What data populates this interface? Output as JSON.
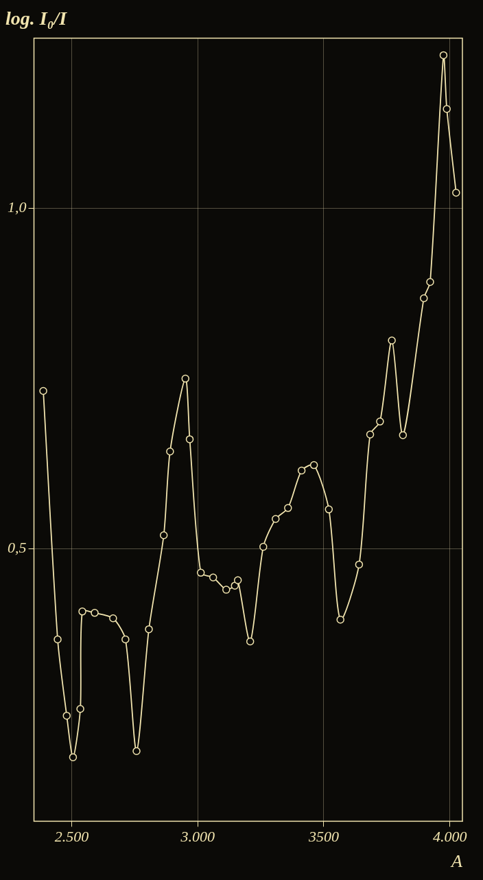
{
  "chart_data": {
    "type": "line",
    "title": "log. I₀/I",
    "x_label": "A",
    "x": [
      2387,
      2444,
      2480,
      2505,
      2534,
      2542,
      2591,
      2664,
      2713,
      2757,
      2806,
      2865,
      2890,
      2951,
      2968,
      3012,
      3061,
      3113,
      3147,
      3159,
      3208,
      3260,
      3309,
      3358,
      3412,
      3461,
      3520,
      3566,
      3640,
      3684,
      3723,
      3770,
      3814,
      3897,
      3922,
      3975,
      3988,
      4025
    ],
    "values": [
      0.732,
      0.367,
      0.255,
      0.194,
      0.265,
      0.408,
      0.406,
      0.398,
      0.367,
      0.203,
      0.382,
      0.52,
      0.643,
      0.75,
      0.661,
      0.465,
      0.458,
      0.44,
      0.446,
      0.454,
      0.364,
      0.503,
      0.544,
      0.56,
      0.615,
      0.623,
      0.558,
      0.396,
      0.477,
      0.668,
      0.687,
      0.806,
      0.667,
      0.868,
      0.892,
      1.225,
      1.146,
      1.023
    ],
    "color": "#f1e4ae",
    "marker": "circle",
    "line_style": "solid",
    "xlim": [
      2350,
      4050
    ],
    "xticks": [
      {
        "value": 2500,
        "label": "2.500"
      },
      {
        "value": 3000,
        "label": "3.000"
      },
      3500,
      {
        "value": 4000,
        "label": "4.000"
      }
    ],
    "ylim": [
      0.1,
      1.25
    ],
    "yticks": [
      {
        "value": 0.5,
        "label": "0,5"
      },
      {
        "value": 1.0,
        "label": "1,0"
      }
    ],
    "grid": true
  }
}
